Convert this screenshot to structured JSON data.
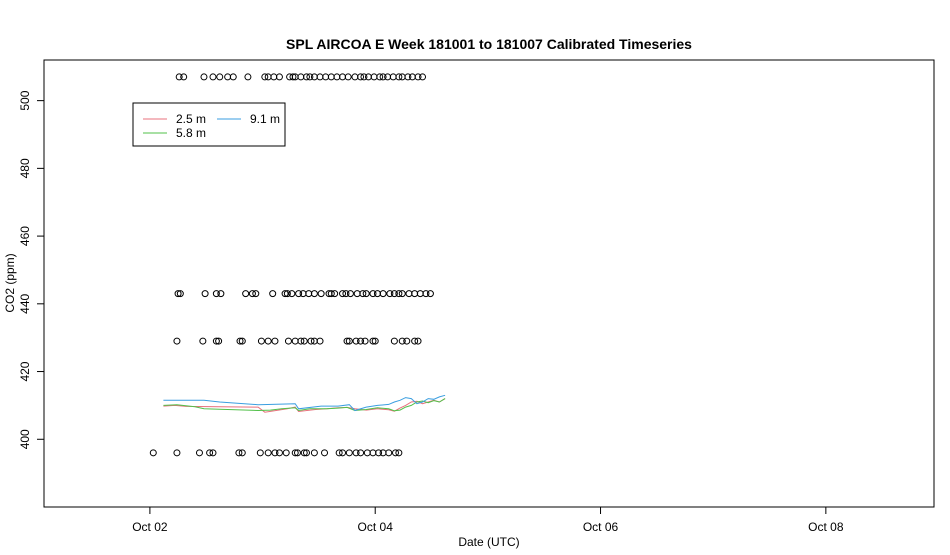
{
  "chart_data": {
    "type": "line",
    "title": "SPL AIRCOA E  Week 181001 to 181007  Calibrated Timeseries",
    "xlabel": "Date (UTC)",
    "ylabel": "CO2 (ppm)",
    "x_axis": {
      "unit": "days since Oct 01 00:00 UTC",
      "xlim": [
        0.06,
        7.96
      ],
      "ticks": [
        {
          "pos": 1,
          "label": "Oct 02"
        },
        {
          "pos": 3,
          "label": "Oct 04"
        },
        {
          "pos": 5,
          "label": "Oct 06"
        },
        {
          "pos": 7,
          "label": "Oct 08"
        }
      ]
    },
    "y_axis": {
      "ylim": [
        380,
        512
      ],
      "ticks": [
        400,
        420,
        440,
        460,
        480,
        500
      ]
    },
    "legend": {
      "placement": "top-left",
      "entries": [
        {
          "name": "2.5 m",
          "color": "#e8707c"
        },
        {
          "name": "5.8 m",
          "color": "#52c04a"
        },
        {
          "name": "9.1 m",
          "color": "#3a9ee0"
        }
      ]
    },
    "series": [
      {
        "name": "2.5 m",
        "color": "#e8707c",
        "x": [
          0.0,
          0.1,
          0.2,
          0.5,
          0.84,
          0.9,
          1.0,
          1.1,
          1.17,
          1.2,
          1.35,
          1.45,
          1.55,
          1.63,
          1.7,
          1.8,
          1.9,
          2.0,
          2.05,
          2.1,
          2.15,
          2.2,
          2.25,
          2.3,
          2.35,
          2.4,
          2.45,
          2.5
        ],
        "y": [
          409.8,
          410.0,
          409.7,
          409.6,
          409.5,
          408.0,
          408.5,
          409.0,
          409.5,
          408.2,
          408.8,
          409.0,
          409.3,
          409.4,
          409.0,
          408.6,
          409.0,
          408.7,
          408.3,
          409.2,
          410.0,
          411.0,
          411.2,
          410.5,
          411.0,
          411.5,
          411.0,
          412.0
        ]
      },
      {
        "name": "5.8 m",
        "color": "#52c04a",
        "x": [
          0.0,
          0.12,
          0.28,
          0.36,
          0.84,
          0.95,
          1.05,
          1.17,
          1.2,
          1.3,
          1.45,
          1.55,
          1.63,
          1.7,
          1.8,
          1.9,
          2.0,
          2.05,
          2.1,
          2.15,
          2.2,
          2.25,
          2.3,
          2.35,
          2.4,
          2.45,
          2.5
        ],
        "y": [
          410.0,
          410.2,
          409.6,
          409.0,
          408.5,
          408.6,
          409.0,
          409.3,
          408.5,
          409.0,
          409.0,
          409.2,
          409.4,
          408.5,
          408.8,
          409.3,
          409.0,
          408.4,
          408.6,
          409.5,
          410.0,
          411.0,
          411.3,
          410.8,
          411.4,
          411.0,
          412.0
        ]
      },
      {
        "name": "9.1 m",
        "color": "#3a9ee0",
        "x": [
          0.0,
          0.2,
          0.36,
          0.5,
          0.84,
          1.17,
          1.2,
          1.4,
          1.55,
          1.65,
          1.7,
          1.8,
          1.9,
          2.0,
          2.05,
          2.1,
          2.15,
          2.2,
          2.25,
          2.3,
          2.35,
          2.4,
          2.45,
          2.5
        ],
        "y": [
          411.5,
          411.5,
          411.5,
          411.0,
          410.2,
          410.5,
          409.0,
          409.8,
          409.8,
          410.2,
          408.5,
          409.5,
          410.0,
          410.3,
          411.0,
          411.5,
          412.3,
          412.0,
          410.5,
          411.0,
          412.0,
          411.8,
          412.5,
          413.0
        ]
      }
    ],
    "points": [
      {
        "x": [
          0.14,
          0.18,
          0.36,
          0.44,
          0.5,
          0.57,
          0.62,
          0.75,
          0.9,
          0.93,
          0.98,
          1.03,
          1.12,
          1.15,
          1.17,
          1.22,
          1.27,
          1.3,
          1.34,
          1.39,
          1.44,
          1.49,
          1.54,
          1.59,
          1.64,
          1.7,
          1.75,
          1.78,
          1.82,
          1.87,
          1.92,
          1.95,
          1.99,
          2.04,
          2.09,
          2.12,
          2.17,
          2.21,
          2.26,
          2.3
        ],
        "y": 507
      },
      {
        "x": [
          0.13,
          0.15,
          0.37,
          0.47,
          0.51,
          0.73,
          0.79,
          0.82,
          0.97,
          1.08,
          1.1,
          1.14,
          1.2,
          1.24,
          1.29,
          1.34,
          1.4,
          1.47,
          1.49,
          1.52,
          1.59,
          1.62,
          1.66,
          1.72,
          1.77,
          1.8,
          1.86,
          1.9,
          1.95,
          2.01,
          2.05,
          2.09,
          2.12,
          2.18,
          2.23,
          2.28,
          2.33,
          2.37
        ],
        "y": 443
      },
      {
        "x": [
          0.12,
          0.35,
          0.47,
          0.49,
          0.68,
          0.7,
          0.87,
          0.93,
          0.99,
          1.11,
          1.17,
          1.22,
          1.25,
          1.31,
          1.34,
          1.39,
          1.63,
          1.65,
          1.71,
          1.75,
          1.79,
          1.86,
          1.88,
          2.05,
          2.12,
          2.16,
          2.23,
          2.26
        ],
        "y": 429
      },
      {
        "x": [
          -0.09,
          0.12,
          0.32,
          0.41,
          0.44,
          0.67,
          0.7,
          0.86,
          0.93,
          0.99,
          1.03,
          1.09,
          1.17,
          1.19,
          1.25,
          1.27,
          1.34,
          1.43,
          1.56,
          1.59,
          1.65,
          1.71,
          1.75,
          1.81,
          1.86,
          1.91,
          1.95,
          2.0,
          2.06,
          2.09
        ],
        "y": 396
      }
    ]
  }
}
